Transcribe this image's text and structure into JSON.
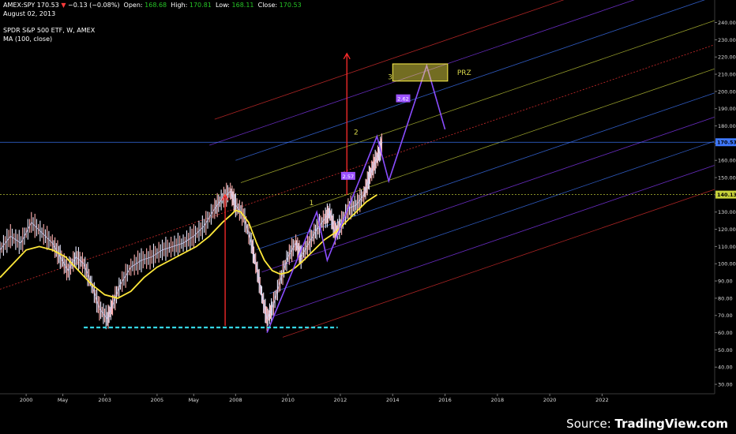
{
  "header": {
    "symbol": "AMEX:SPY",
    "last": "170.53",
    "change_arrow": "▼",
    "change": "−0.13 (−0.08%)",
    "open_label": "Open:",
    "open": "168.68",
    "high_label": "High:",
    "high": "170.81",
    "low_label": "Low:",
    "low": "168.11",
    "close_label": "Close:",
    "close": "170.53",
    "date": "August 02, 2013"
  },
  "legend": {
    "title": "SPDR S&P 500 ETF, W, AMEX",
    "indicator": "MA (100, close)"
  },
  "source": {
    "prefix": "Source: ",
    "brand": "TradingView.com"
  },
  "colors": {
    "background": "#000000",
    "ma_line": "#ffe83a",
    "pattern_line": "#8a4dff",
    "support_dash": "#35d7e6",
    "projection_arrow": "#ff2b2b",
    "prz_fill": "#fff24c",
    "pitchfork_red": "#e53131",
    "pitchfork_yellow": "#c8d23a",
    "pitchfork_blue": "#3f78ff",
    "pitchfork_purple": "#8a3bff",
    "tag_bg": "#9c52ff"
  },
  "chart_data": {
    "type": "line",
    "x_axis": {
      "labels": [
        "2000",
        "May",
        "2003",
        "2005",
        "May",
        "2008",
        "2010",
        "2012",
        "2014",
        "2016",
        "2018",
        "2020",
        "2022"
      ],
      "values": [
        2000.0,
        2001.4,
        2003.0,
        2005.0,
        2006.4,
        2008.0,
        2010.0,
        2012.0,
        2014.0,
        2016.0,
        2018.0,
        2020.0,
        2022.0
      ],
      "range": [
        1999.0,
        2026.3
      ]
    },
    "y_axis": {
      "ticks": [
        30,
        40,
        50,
        60,
        70,
        80,
        90,
        100,
        110,
        120,
        130,
        140,
        150,
        160,
        170,
        180,
        190,
        200,
        210,
        220,
        230,
        240
      ],
      "range": [
        25,
        243
      ]
    },
    "price_labels": [
      {
        "value": 170.53,
        "text": "170.53",
        "color": "#3f78ff"
      },
      {
        "value": 140.13,
        "text": "140.13",
        "color": "#c8d23a"
      }
    ],
    "series": [
      {
        "kind": "price",
        "points": [
          [
            1999.0,
            108
          ],
          [
            1999.4,
            116
          ],
          [
            1999.8,
            112
          ],
          [
            2000.2,
            124
          ],
          [
            2000.6,
            118
          ],
          [
            2001.0,
            112
          ],
          [
            2001.3,
            104
          ],
          [
            2001.6,
            96
          ],
          [
            2001.9,
            104
          ],
          [
            2002.2,
            100
          ],
          [
            2002.5,
            88
          ],
          [
            2002.8,
            74
          ],
          [
            2003.1,
            68
          ],
          [
            2003.3,
            76
          ],
          [
            2003.6,
            88
          ],
          [
            2004.0,
            98
          ],
          [
            2004.4,
            102
          ],
          [
            2004.8,
            104
          ],
          [
            2005.2,
            108
          ],
          [
            2005.6,
            110
          ],
          [
            2006.0,
            112
          ],
          [
            2006.4,
            116
          ],
          [
            2006.8,
            122
          ],
          [
            2007.2,
            132
          ],
          [
            2007.5,
            138
          ],
          [
            2007.8,
            142
          ],
          [
            2008.0,
            134
          ],
          [
            2008.3,
            128
          ],
          [
            2008.6,
            112
          ],
          [
            2008.8,
            98
          ],
          [
            2009.0,
            82
          ],
          [
            2009.2,
            68
          ],
          [
            2009.4,
            74
          ],
          [
            2009.7,
            90
          ],
          [
            2010.0,
            104
          ],
          [
            2010.3,
            112
          ],
          [
            2010.5,
            104
          ],
          [
            2010.8,
            112
          ],
          [
            2011.1,
            120
          ],
          [
            2011.4,
            126
          ],
          [
            2011.6,
            130
          ],
          [
            2011.8,
            118
          ],
          [
            2012.0,
            122
          ],
          [
            2012.3,
            132
          ],
          [
            2012.6,
            134
          ],
          [
            2012.9,
            140
          ],
          [
            2013.1,
            150
          ],
          [
            2013.3,
            158
          ],
          [
            2013.5,
            165
          ],
          [
            2013.6,
            170.5
          ]
        ]
      },
      {
        "name": "MA (100, close)",
        "kind": "ma",
        "points": [
          [
            1999.0,
            92
          ],
          [
            1999.5,
            100
          ],
          [
            2000.0,
            108
          ],
          [
            2000.5,
            110
          ],
          [
            2001.0,
            108
          ],
          [
            2001.5,
            104
          ],
          [
            2002.0,
            96
          ],
          [
            2002.5,
            88
          ],
          [
            2003.0,
            82
          ],
          [
            2003.5,
            80
          ],
          [
            2004.0,
            84
          ],
          [
            2004.5,
            92
          ],
          [
            2005.0,
            98
          ],
          [
            2005.5,
            102
          ],
          [
            2006.0,
            106
          ],
          [
            2006.5,
            110
          ],
          [
            2007.0,
            116
          ],
          [
            2007.5,
            124
          ],
          [
            2007.8,
            128
          ],
          [
            2008.0,
            131
          ],
          [
            2008.2,
            130
          ],
          [
            2008.5,
            124
          ],
          [
            2008.8,
            112
          ],
          [
            2009.1,
            102
          ],
          [
            2009.4,
            96
          ],
          [
            2009.7,
            94
          ],
          [
            2010.0,
            95
          ],
          [
            2010.3,
            98
          ],
          [
            2010.6,
            102
          ],
          [
            2011.0,
            108
          ],
          [
            2011.4,
            114
          ],
          [
            2011.8,
            118
          ],
          [
            2012.2,
            124
          ],
          [
            2012.6,
            130
          ],
          [
            2013.0,
            136
          ],
          [
            2013.4,
            140
          ]
        ]
      },
      {
        "kind": "pattern",
        "points": [
          [
            2009.2,
            60
          ],
          [
            2011.1,
            130
          ],
          [
            2011.5,
            102
          ],
          [
            2013.4,
            174
          ],
          [
            2013.85,
            148
          ],
          [
            2015.3,
            215
          ],
          [
            2016.0,
            178
          ]
        ]
      }
    ],
    "pitchfork": {
      "slope_per_year": 5.2,
      "pivot_year": 2008.0,
      "lines": [
        {
          "intercept_2008": 188,
          "color": "#e53131",
          "x_start": 2007.2
        },
        {
          "intercept_2008": 174,
          "color": "#8a3bff",
          "x_start": 2007.0
        },
        {
          "intercept_2008": 160,
          "color": "#3f78ff",
          "x_start": 2008.0
        },
        {
          "intercept_2008": 146,
          "color": "#c8d23a",
          "x_start": 2008.2
        },
        {
          "intercept_2008": 132,
          "color": "#e53131",
          "x_start": 1999.0,
          "dashed": true
        },
        {
          "intercept_2008": 118,
          "color": "#c8d23a",
          "x_start": 2008.5
        },
        {
          "intercept_2008": 104,
          "color": "#3f78ff",
          "x_start": 2008.8
        },
        {
          "intercept_2008": 90,
          "color": "#8a3bff",
          "x_start": 2009.0
        },
        {
          "intercept_2008": 76,
          "color": "#3f78ff",
          "x_start": 2009.3
        },
        {
          "intercept_2008": 62,
          "color": "#8a3bff",
          "x_start": 2009.5
        },
        {
          "intercept_2008": 48,
          "color": "#e53131",
          "x_start": 2009.8
        }
      ]
    },
    "horizontal_lines": [
      {
        "value": 170.53,
        "color": "#3f78ff"
      },
      {
        "value": 140.13,
        "color": "#c8d23a"
      }
    ],
    "support_line": {
      "value": 63,
      "x_from": 2002.2,
      "x_to": 2011.9
    },
    "projection_arrows": [
      {
        "x": 2007.6,
        "from": 64,
        "to": 140
      },
      {
        "x": 2012.25,
        "from": 140,
        "to": 222
      }
    ],
    "prz": {
      "x_from": 2014.0,
      "x_to": 2016.1,
      "y_from": 206,
      "y_to": 216,
      "label": "PRZ"
    },
    "wave_labels": [
      {
        "text": "1",
        "x": 2010.9,
        "y": 134,
        "color": "#d9d84a"
      },
      {
        "text": "2",
        "x": 2012.6,
        "y": 175,
        "color": "#d9d84a"
      },
      {
        "text": "3",
        "x": 2013.9,
        "y": 207,
        "color": "#d9d84a"
      }
    ],
    "ratio_tags": [
      {
        "text": "2.57",
        "x": 2012.3,
        "y": 151
      },
      {
        "text": "2.62",
        "x": 2014.4,
        "y": 196
      }
    ]
  }
}
